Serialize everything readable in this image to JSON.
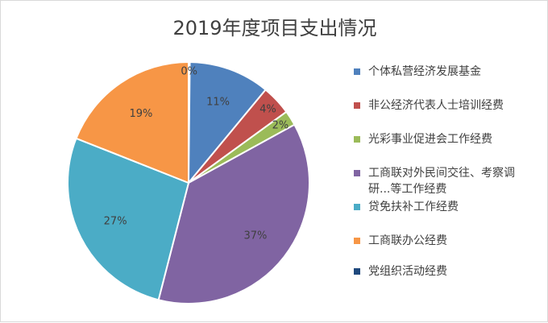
{
  "chart_data": {
    "type": "pie",
    "title": "2019年度项目支出情况",
    "categories": [
      "个体私营经济发展基金",
      "非公经济代表人士培训经费",
      "光彩事业促进会工作经费",
      "工商联对外民间交往、考察调研...等工作经费",
      "贷免扶补工作经费",
      "工商联办公经费",
      "党组织活动经费"
    ],
    "values": [
      11,
      4,
      2,
      37,
      27,
      19,
      0
    ],
    "data_labels": [
      "11%",
      "4%",
      "2%",
      "37%",
      "27%",
      "19%",
      "0%"
    ],
    "colors": [
      "#4f81bd",
      "#c0504d",
      "#9bbb59",
      "#8064a2",
      "#4bacc6",
      "#f79646",
      "#1f497d"
    ],
    "legend_position": "right"
  }
}
